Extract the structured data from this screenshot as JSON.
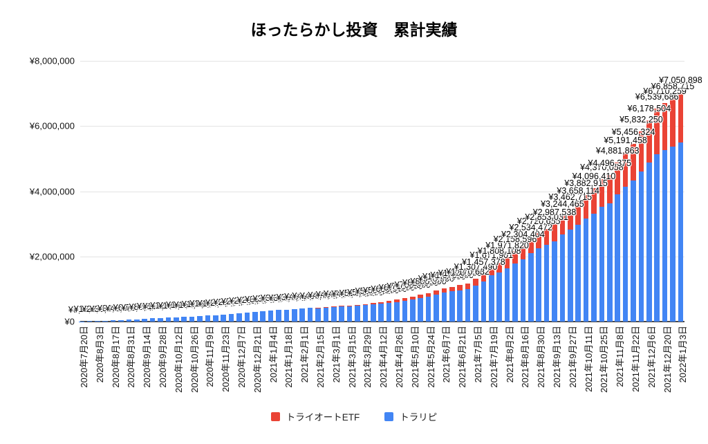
{
  "title": "ほったらかし投資　累計実績",
  "legend": {
    "items": [
      {
        "label": "トライオートETF",
        "color": "#EA4335"
      },
      {
        "label": "トラリピ",
        "color": "#4285F4"
      }
    ]
  },
  "chart_data": {
    "type": "bar",
    "stacked": true,
    "title": "ほったらかし投資　累計実績",
    "currency_prefix": "¥",
    "ylim": [
      0,
      8000000
    ],
    "y_ticks": [
      0,
      2000000,
      4000000,
      6000000,
      8000000
    ],
    "grid": true,
    "legend_position": "bottom",
    "data_labels": "total above each bar",
    "bars_per_tick": 2,
    "x_tick_labels": [
      "2020年7月20日",
      "2020年8月3日",
      "2020年8月17日",
      "2020年8月31日",
      "2020年9月14日",
      "2020年9月28日",
      "2020年10月12日",
      "2020年10月26日",
      "2020年11月9日",
      "2020年11月23日",
      "2020年12月7日",
      "2020年12月21日",
      "2021年1月4日",
      "2021年1月18日",
      "2021年2月1日",
      "2021年2月15日",
      "2021年3月1日",
      "2021年3月15日",
      "2021年3月29日",
      "2021年4月12日",
      "2021年4月26日",
      "2021年5月10日",
      "2021年5月24日",
      "2021年6月7日",
      "2021年6月21日",
      "2021年7月5日",
      "2021年7月19日",
      "2021年8月2日",
      "2021年8月16日",
      "2021年8月30日",
      "2021年9月13日",
      "2021年9月27日",
      "2021年10月11日",
      "2021年10月25日",
      "2021年11月8日",
      "2021年11月22日",
      "2021年12月6日",
      "2021年12月20日",
      "2022年1月3日"
    ],
    "key_total_labels": [
      "¥1,170,632",
      "¥1,457,378",
      "¥1,671,901",
      "¥1,808,108",
      "¥2,304,404",
      "¥2,534,472",
      "¥2,987,538",
      "¥3,244,465",
      "¥3,462,715",
      "¥3,658,114",
      "¥4,096,410",
      "¥4,496,375",
      "¥4,881,863",
      "¥5,191,458",
      "¥5,456,324",
      "¥5,832,250",
      "¥6,178,504",
      "¥6,539,686",
      "¥7,050,898"
    ],
    "series": [
      {
        "name": "トラリピ",
        "color": "#4285F4",
        "values": [
          8000,
          15000,
          22000,
          30000,
          38357,
          48000,
          60000,
          72000,
          85000,
          98000,
          110000,
          122000,
          134000,
          146000,
          158000,
          170000,
          182000,
          194000,
          206000,
          228000,
          250000,
          272000,
          294000,
          316000,
          338000,
          355000,
          370000,
          385000,
          400000,
          415000,
          422000,
          434000,
          446000,
          457000,
          469000,
          483000,
          502000,
          520000,
          543000,
          570000,
          602000,
          638000,
          679000,
          724000,
          773000,
          827000,
          885000,
          928000,
          965000,
          1002632,
          1112490,
          1235378,
          1411901,
          1516108,
          1641820,
          1790596,
          1906404,
          2098472,
          2252655,
          2357031,
          2465538,
          2664465,
          2828715,
          2980114,
          3154915,
          3320410,
          3530058,
          3624375,
          3913863,
          4139458,
          4336324,
          4614250,
          4870504,
          5137686,
          5262259,
          5360715,
          5499700
        ]
      },
      {
        "name": "トライオートETF",
        "color": "#EA4335",
        "values": [
          0,
          0,
          0,
          0,
          0,
          0,
          0,
          0,
          0,
          0,
          0,
          0,
          0,
          0,
          0,
          0,
          0,
          0,
          0,
          0,
          0,
          0,
          0,
          0,
          0,
          0,
          0,
          0,
          0,
          0,
          8000,
          12000,
          16000,
          21000,
          26000,
          32000,
          38000,
          45000,
          52000,
          60000,
          68000,
          77000,
          86000,
          96000,
          107000,
          118000,
          130000,
          142000,
          155000,
          168000,
          195000,
          222000,
          260000,
          292000,
          330000,
          368000,
          398000,
          436000,
          468000,
          496000,
          522000,
          580000,
          634000,
          678000,
          728000,
          776000,
          840000,
          872000,
          968000,
          1052000,
          1120000,
          1218000,
          1308000,
          1402000,
          1448000,
          1498000,
          1551198
        ]
      }
    ]
  }
}
